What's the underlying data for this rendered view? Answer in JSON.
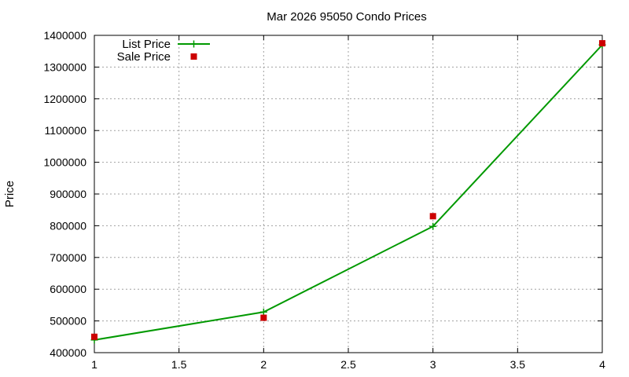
{
  "chart_data": {
    "type": "line",
    "title": "Mar 2026 95050 Condo Prices",
    "xlabel": "",
    "ylabel": "Price",
    "xlim": [
      1,
      4
    ],
    "ylim": [
      400000,
      1400000
    ],
    "x_ticks": [
      "1",
      "1.5",
      "2",
      "2.5",
      "3",
      "3.5",
      "4"
    ],
    "y_ticks": [
      "400000",
      "500000",
      "600000",
      "700000",
      "800000",
      "900000",
      "1000000",
      "1100000",
      "1200000",
      "1300000",
      "1400000"
    ],
    "grid": true,
    "legend_position": "top-left",
    "series": [
      {
        "name": "List Price",
        "style": "linespoints",
        "marker": "plus",
        "color": "#009900",
        "points": [
          [
            1,
            440000
          ],
          [
            2,
            528000
          ],
          [
            3,
            798000
          ],
          [
            4,
            1370000
          ]
        ]
      },
      {
        "name": "Sale Price",
        "style": "points",
        "marker": "square",
        "color": "#cc0000",
        "points": [
          [
            1,
            450000
          ],
          [
            2,
            510000
          ],
          [
            3,
            830000
          ],
          [
            4,
            1375000
          ]
        ]
      }
    ]
  }
}
